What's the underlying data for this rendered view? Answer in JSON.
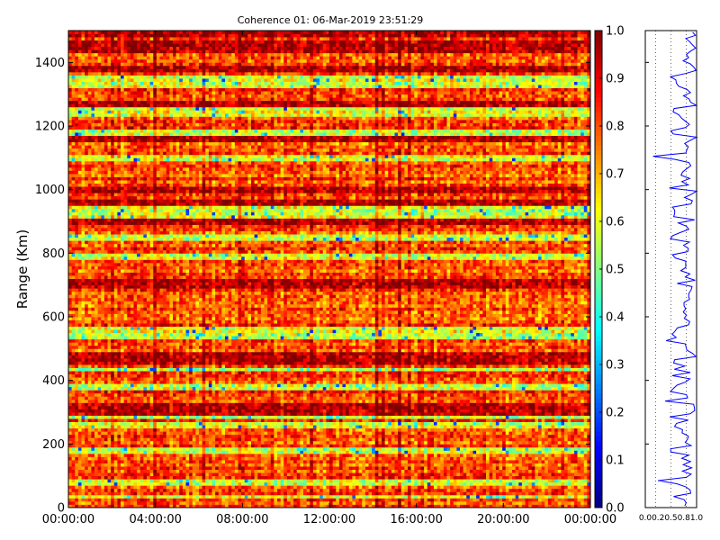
{
  "chart_data": [
    {
      "type": "heatmap",
      "title": "Coherence 01: 06-Mar-2019 23:51:29",
      "ylabel": "Range (Km)",
      "xlabel": "",
      "x_ticks": [
        "00:00:00",
        "04:00:00",
        "08:00:00",
        "12:00:00",
        "16:00:00",
        "20:00:00",
        "00:00:00"
      ],
      "x_range_hours": [
        0,
        24
      ],
      "y_ticks": [
        0,
        200,
        400,
        600,
        800,
        1000,
        1200,
        1400
      ],
      "ylim": [
        0,
        1500
      ],
      "colorscale": "jet",
      "value_range": [
        0.0,
        1.0
      ],
      "colorbar_ticks": [
        "0.0",
        "0.1",
        "0.2",
        "0.3",
        "0.4",
        "0.5",
        "0.6",
        "0.7",
        "0.8",
        "0.9",
        "1.0"
      ],
      "n_time_columns": 160,
      "n_range_rows": 150,
      "low_coherence_ranges_km": [
        35,
        80,
        180,
        260,
        290,
        380,
        435,
        540,
        560,
        790,
        850,
        920,
        940,
        1100,
        1180,
        1240,
        1250,
        1330,
        1350
      ],
      "high_coherence_ranges_km": [
        300,
        320,
        460,
        470,
        480,
        700,
        710,
        900,
        960,
        1000,
        1160,
        1270,
        1380,
        1440,
        1460,
        1490
      ]
    },
    {
      "type": "line",
      "x_ticks": [
        "0.0",
        "0.2",
        "0.5",
        "0.8",
        "1.0"
      ],
      "xlim": [
        0.0,
        1.0
      ],
      "ylim": [
        0,
        1500
      ],
      "series": [
        {
          "color": "#0000ff"
        }
      ]
    }
  ]
}
